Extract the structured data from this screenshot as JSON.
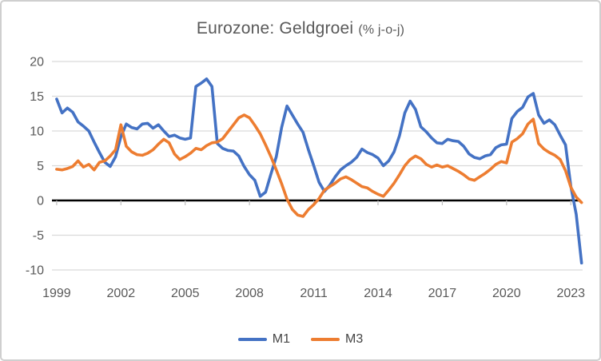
{
  "chart_data": {
    "type": "line",
    "title": "Eurozone: Geldgroei",
    "title_suffix": "(% j-o-j)",
    "xlabel": "",
    "ylabel": "",
    "ylim": [
      -10,
      20
    ],
    "xlim": [
      1998.78,
      2023.55
    ],
    "grid": "horizontal",
    "zero_line": true,
    "legend_position": "bottom",
    "y_ticks": [
      20,
      15,
      10,
      5,
      0,
      -5,
      -10
    ],
    "x_ticks": [
      1999,
      2002,
      2005,
      2008,
      2011,
      2014,
      2017,
      2020,
      2023
    ],
    "colors": {
      "grid": "#D9D9D9",
      "zero_line": "#000000",
      "axis_text": "#595959",
      "title_text": "#595959",
      "legend_text": "#444444",
      "frame_border": "#CFCFCF",
      "background": "#FFFFFF"
    },
    "x": [
      1999,
      1999.25,
      1999.5,
      1999.75,
      2000,
      2000.25,
      2000.5,
      2000.75,
      2001,
      2001.25,
      2001.5,
      2001.75,
      2002,
      2002.25,
      2002.5,
      2002.75,
      2003,
      2003.25,
      2003.5,
      2003.75,
      2004,
      2004.25,
      2004.5,
      2004.75,
      2005,
      2005.25,
      2005.5,
      2005.75,
      2006,
      2006.25,
      2006.5,
      2006.75,
      2007,
      2007.25,
      2007.5,
      2007.75,
      2008,
      2008.25,
      2008.5,
      2008.75,
      2009,
      2009.25,
      2009.5,
      2009.75,
      2010,
      2010.25,
      2010.5,
      2010.75,
      2011,
      2011.25,
      2011.5,
      2011.75,
      2012,
      2012.25,
      2012.5,
      2012.75,
      2013,
      2013.25,
      2013.5,
      2013.75,
      2014,
      2014.25,
      2014.5,
      2014.75,
      2015,
      2015.25,
      2015.5,
      2015.75,
      2016,
      2016.25,
      2016.5,
      2016.75,
      2017,
      2017.25,
      2017.5,
      2017.75,
      2018,
      2018.25,
      2018.5,
      2018.75,
      2019,
      2019.25,
      2019.5,
      2019.75,
      2020,
      2020.25,
      2020.5,
      2020.75,
      2021,
      2021.25,
      2021.5,
      2021.75,
      2022,
      2022.25,
      2022.5,
      2022.75,
      2023,
      2023.25,
      2023.5
    ],
    "series": [
      {
        "name": "M1",
        "color": "#4472C4",
        "values": [
          14.6,
          12.6,
          13.3,
          12.7,
          11.3,
          10.7,
          10.0,
          8.4,
          6.9,
          5.5,
          4.9,
          6.3,
          9.2,
          11.0,
          10.5,
          10.3,
          11.0,
          11.1,
          10.4,
          10.9,
          10.0,
          9.2,
          9.4,
          9.0,
          8.8,
          9.0,
          16.4,
          16.9,
          17.5,
          16.4,
          8.2,
          7.5,
          7.2,
          7.1,
          6.4,
          4.9,
          3.7,
          2.9,
          0.6,
          1.2,
          3.8,
          6.3,
          10.5,
          13.6,
          12.3,
          11.0,
          9.8,
          7.3,
          5.0,
          2.6,
          1.3,
          2.2,
          3.4,
          4.4,
          5.0,
          5.5,
          6.2,
          7.4,
          6.9,
          6.6,
          6.1,
          5.0,
          5.7,
          7.0,
          9.3,
          12.6,
          14.3,
          13.1,
          10.6,
          9.9,
          9.0,
          8.3,
          8.2,
          8.8,
          8.6,
          8.5,
          7.8,
          6.7,
          6.2,
          6.0,
          6.4,
          6.6,
          7.6,
          8.0,
          8.1,
          11.8,
          12.8,
          13.4,
          14.9,
          15.4,
          12.3,
          11.1,
          11.6,
          10.9,
          9.4,
          8.0,
          2.0,
          -2.0,
          -9.0
        ]
      },
      {
        "name": "M3",
        "color": "#ED7D31",
        "values": [
          4.5,
          4.4,
          4.6,
          4.9,
          5.7,
          4.8,
          5.2,
          4.4,
          5.5,
          5.7,
          6.4,
          7.3,
          10.9,
          7.8,
          7.0,
          6.6,
          6.5,
          6.8,
          7.3,
          8.1,
          8.8,
          8.3,
          6.7,
          5.9,
          6.3,
          6.8,
          7.5,
          7.3,
          7.9,
          8.3,
          8.4,
          8.9,
          9.9,
          10.9,
          11.9,
          12.3,
          11.9,
          10.8,
          9.6,
          8.0,
          6.3,
          4.4,
          2.4,
          0.2,
          -1.3,
          -2.1,
          -2.3,
          -1.3,
          -0.6,
          0.3,
          1.5,
          2.0,
          2.5,
          3.1,
          3.4,
          3.0,
          2.5,
          2.0,
          1.8,
          1.3,
          0.9,
          0.6,
          1.5,
          2.5,
          3.7,
          5.0,
          5.9,
          6.4,
          6.0,
          5.2,
          4.8,
          5.1,
          4.8,
          5.0,
          4.6,
          4.2,
          3.7,
          3.1,
          2.9,
          3.4,
          3.9,
          4.5,
          5.2,
          5.6,
          5.4,
          8.4,
          8.9,
          9.6,
          11.0,
          11.7,
          8.2,
          7.4,
          6.9,
          6.5,
          5.9,
          4.3,
          1.9,
          0.5,
          -0.3
        ]
      }
    ]
  }
}
